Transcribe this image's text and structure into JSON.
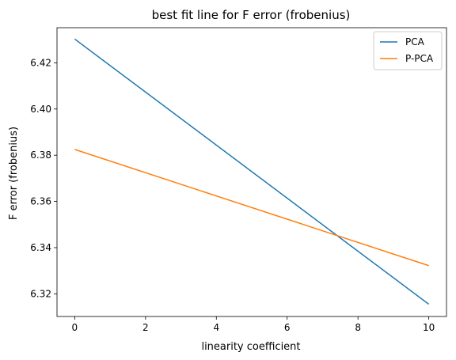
{
  "chart_data": {
    "type": "line",
    "title": "best fit line for F error (frobenius)",
    "xlabel": "linearity coefficient",
    "ylabel": "F error (frobenius)",
    "xlim": [
      -0.5,
      10.5
    ],
    "ylim": [
      6.3102,
      6.4352
    ],
    "x_ticks": [
      0,
      2,
      4,
      6,
      8,
      10
    ],
    "y_ticks": [
      6.32,
      6.34,
      6.36,
      6.38,
      6.4,
      6.42
    ],
    "x_tick_labels": [
      "0",
      "2",
      "4",
      "6",
      "8",
      "10"
    ],
    "y_tick_labels": [
      "6.32",
      "6.34",
      "6.36",
      "6.38",
      "6.40",
      "6.42"
    ],
    "grid": false,
    "legend_position": "top-right",
    "series": [
      {
        "name": "PCA",
        "color": "#1f77b4",
        "x": [
          0,
          10
        ],
        "y": [
          6.4303,
          6.3155
        ]
      },
      {
        "name": "P-PCA",
        "color": "#ff7f0e",
        "x": [
          0,
          10
        ],
        "y": [
          6.3825,
          6.3322
        ]
      }
    ]
  }
}
